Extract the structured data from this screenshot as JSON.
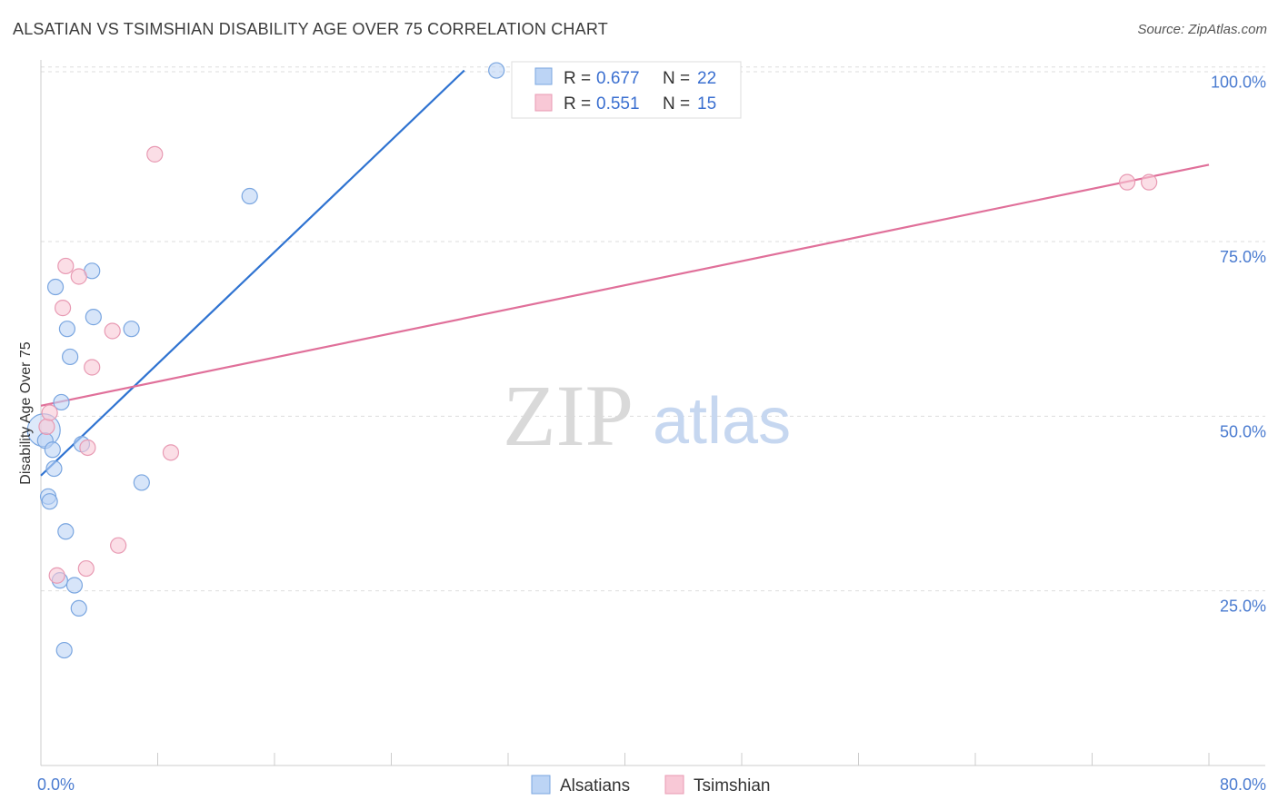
{
  "header": {
    "title": "ALSATIAN VS TSIMSHIAN DISABILITY AGE OVER 75 CORRELATION CHART",
    "source": "Source: ZipAtlas.com"
  },
  "watermark": {
    "zip": "ZIP",
    "atlas": "atlas"
  },
  "colors": {
    "alsatian_fill": "#bcd4f5",
    "alsatian_stroke": "#7aa6e0",
    "alsatian_line": "#2f73d1",
    "tsimshian_fill": "#f8c8d6",
    "tsimshian_stroke": "#e89ab3",
    "tsimshian_line": "#e0709a",
    "grid": "#dddddd",
    "axis_text": "#4a7bd0"
  },
  "legend": {
    "rows": [
      {
        "r_label": "R = ",
        "r_value": "0.677",
        "n_label": "N = ",
        "n_value": "22"
      },
      {
        "r_label": "R = ",
        "r_value": "0.551",
        "n_label": "N = ",
        "n_value": "15"
      }
    ]
  },
  "chart_data": {
    "type": "scatter",
    "title": "ALSATIAN VS TSIMSHIAN DISABILITY AGE OVER 75 CORRELATION CHART",
    "xlabel": "",
    "ylabel": "Disability Age Over 75",
    "xlim": [
      0,
      80
    ],
    "ylim": [
      0,
      101
    ],
    "x_tick_labels": [
      {
        "value": 0,
        "label": "0.0%"
      },
      {
        "value": 80,
        "label": "80.0%"
      }
    ],
    "x_minor_ticks": [
      0,
      8,
      16,
      24,
      32,
      40,
      48,
      56,
      64,
      72,
      80
    ],
    "y_ticks": [
      {
        "value": 25,
        "label": "25.0%"
      },
      {
        "value": 50,
        "label": "50.0%"
      },
      {
        "value": 75,
        "label": "75.0%"
      },
      {
        "value": 100,
        "label": "100.0%"
      }
    ],
    "series": [
      {
        "name": "Alsatians",
        "points": [
          {
            "x": 0.2,
            "y": 48.0,
            "big": true
          },
          {
            "x": 0.3,
            "y": 46.5
          },
          {
            "x": 0.5,
            "y": 38.5
          },
          {
            "x": 0.6,
            "y": 37.8
          },
          {
            "x": 0.8,
            "y": 45.2
          },
          {
            "x": 0.9,
            "y": 42.5
          },
          {
            "x": 1.0,
            "y": 68.5
          },
          {
            "x": 1.3,
            "y": 26.5
          },
          {
            "x": 1.4,
            "y": 52.0
          },
          {
            "x": 1.6,
            "y": 16.5
          },
          {
            "x": 1.7,
            "y": 33.5
          },
          {
            "x": 1.8,
            "y": 62.5
          },
          {
            "x": 2.0,
            "y": 58.5
          },
          {
            "x": 2.3,
            "y": 25.8
          },
          {
            "x": 2.6,
            "y": 22.5
          },
          {
            "x": 2.8,
            "y": 46.0
          },
          {
            "x": 3.5,
            "y": 70.8
          },
          {
            "x": 3.6,
            "y": 64.2
          },
          {
            "x": 6.2,
            "y": 62.5
          },
          {
            "x": 6.9,
            "y": 40.5
          },
          {
            "x": 14.3,
            "y": 81.5
          },
          {
            "x": 31.2,
            "y": 99.5
          }
        ],
        "trend": {
          "x": [
            0,
            29
          ],
          "y": [
            41.5,
            99.5
          ]
        }
      },
      {
        "name": "Tsimshian",
        "points": [
          {
            "x": 0.4,
            "y": 48.5
          },
          {
            "x": 0.6,
            "y": 50.5
          },
          {
            "x": 1.1,
            "y": 27.2
          },
          {
            "x": 1.5,
            "y": 65.5
          },
          {
            "x": 1.7,
            "y": 71.5
          },
          {
            "x": 2.6,
            "y": 70.0
          },
          {
            "x": 3.1,
            "y": 28.2
          },
          {
            "x": 3.2,
            "y": 45.5
          },
          {
            "x": 3.5,
            "y": 57.0
          },
          {
            "x": 4.9,
            "y": 62.2
          },
          {
            "x": 5.3,
            "y": 31.5
          },
          {
            "x": 7.8,
            "y": 87.5
          },
          {
            "x": 8.9,
            "y": 44.8
          },
          {
            "x": 74.4,
            "y": 83.5
          },
          {
            "x": 75.9,
            "y": 83.5
          }
        ],
        "trend": {
          "x": [
            0,
            80
          ],
          "y": [
            51.5,
            86.0
          ]
        }
      }
    ]
  }
}
